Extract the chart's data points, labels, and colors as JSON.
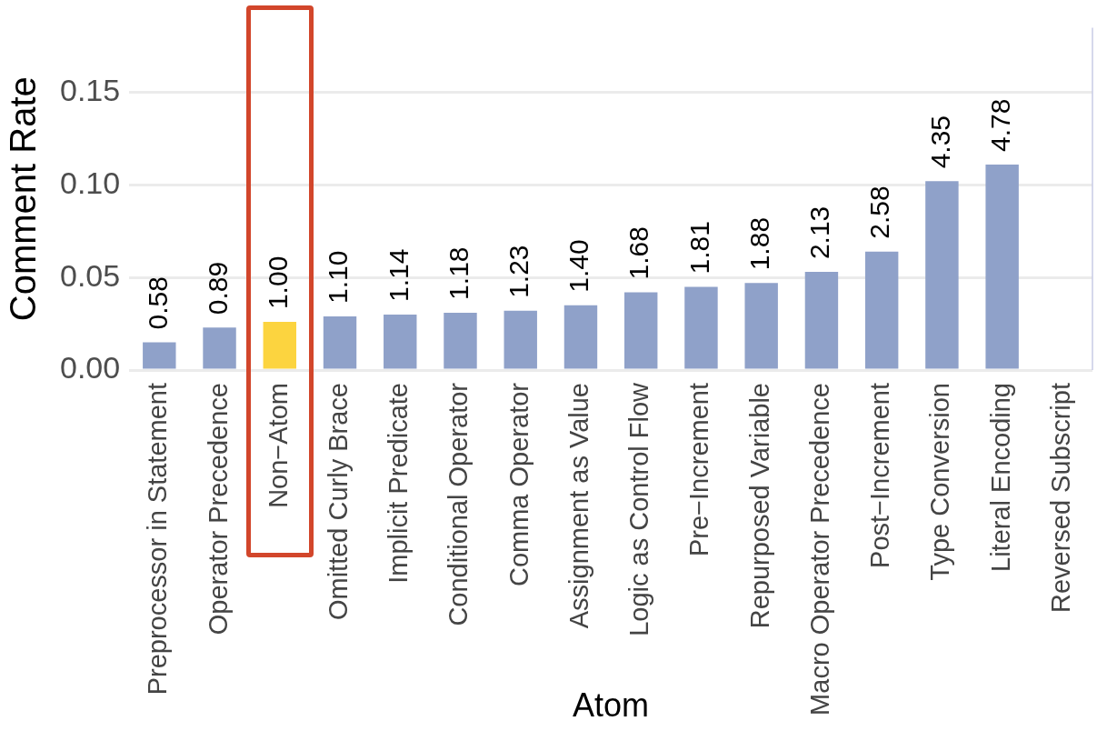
{
  "chart_data": {
    "type": "bar",
    "xlabel": "Atom",
    "ylabel": "Comment Rate",
    "categories": [
      "Preprocessor in Statement",
      "Operator Precedence",
      "Non−Atom",
      "Omitted Curly Brace",
      "Implicit Predicate",
      "Conditional Operator",
      "Comma Operator",
      "Assignment as Value",
      "Logic as Control Flow",
      "Pre−Increment",
      "Repurposed Variable",
      "Macro Operator Precedence",
      "Post−Increment",
      "Type Conversion",
      "Literal Encoding",
      "Reversed Subscript"
    ],
    "values": [
      0.015,
      0.023,
      0.026,
      0.029,
      0.03,
      0.031,
      0.032,
      0.035,
      0.042,
      0.045,
      0.047,
      0.053,
      0.064,
      0.102,
      0.111,
      null
    ],
    "colors": [
      "#8fa1c9",
      "#8fa1c9",
      "#fcd43f",
      "#8fa1c9",
      "#8fa1c9",
      "#8fa1c9",
      "#8fa1c9",
      "#8fa1c9",
      "#8fa1c9",
      "#8fa1c9",
      "#8fa1c9",
      "#8fa1c9",
      "#8fa1c9",
      "#8fa1c9",
      "#8fa1c9",
      "#8fa1c9"
    ],
    "annotations": [
      {
        "text": "0.58",
        "x": "Preprocessor in Statement",
        "y": 0.015
      },
      {
        "text": "0.89",
        "x": "Operator Precedence",
        "y": 0.023
      },
      {
        "text": "1.00",
        "x": "Non−Atom",
        "y": 0.026
      },
      {
        "text": "1.10",
        "x": "Omitted Curly Brace",
        "y": 0.029
      },
      {
        "text": "1.14",
        "x": "Implicit Predicate",
        "y": 0.03
      },
      {
        "text": "1.18",
        "x": "Conditional Operator",
        "y": 0.031
      },
      {
        "text": "1.23",
        "x": "Comma Operator",
        "y": 0.032
      },
      {
        "text": "1.40",
        "x": "Assignment as Value",
        "y": 0.035
      },
      {
        "text": "1.68",
        "x": "Logic as Control Flow",
        "y": 0.042
      },
      {
        "text": "1.81",
        "x": "Pre−Increment",
        "y": 0.045
      },
      {
        "text": "1.88",
        "x": "Repurposed Variable",
        "y": 0.047
      },
      {
        "text": "2.13",
        "x": "Macro Operator Precedence",
        "y": 0.053
      },
      {
        "text": "2.58",
        "x": "Post−Increment",
        "y": 0.064
      },
      {
        "text": "4.35",
        "x": "Type Conversion",
        "y": 0.102
      },
      {
        "text": "4.78",
        "x": "Literal Encoding",
        "y": 0.111
      }
    ],
    "ylim": [
      0,
      0.185
    ],
    "yticks": [
      {
        "value": 0,
        "label": "0.00"
      },
      {
        "value": 0.05,
        "label": "0.05"
      },
      {
        "value": 0.1,
        "label": "0.10"
      },
      {
        "value": 0.15,
        "label": "0.15"
      }
    ],
    "grid": "y",
    "legend": false
  }
}
